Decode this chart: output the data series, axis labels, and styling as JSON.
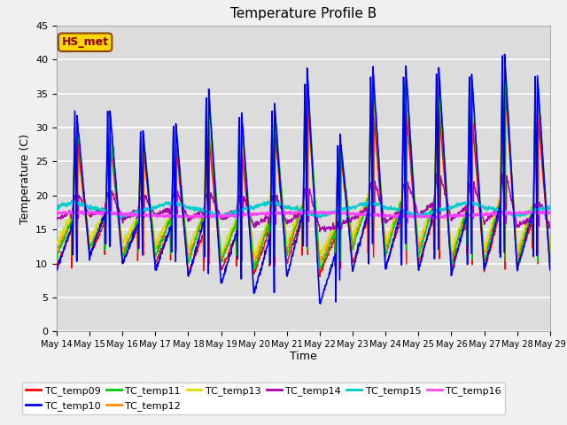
{
  "title": "Temperature Profile B",
  "xlabel": "Time",
  "ylabel": "Temperature (C)",
  "ylim": [
    0,
    45
  ],
  "annotation_text": "HS_met",
  "annotation_color": "#8B0000",
  "annotation_bg": "#FFD700",
  "annotation_edge": "#8B4513",
  "series_order": [
    "TC_temp09",
    "TC_temp10",
    "TC_temp11",
    "TC_temp12",
    "TC_temp13",
    "TC_temp14",
    "TC_temp15",
    "TC_temp16"
  ],
  "colors": {
    "TC_temp09": "#FF0000",
    "TC_temp10": "#0000EE",
    "TC_temp11": "#00CC00",
    "TC_temp12": "#FF8C00",
    "TC_temp13": "#DDDD00",
    "TC_temp14": "#AA00AA",
    "TC_temp15": "#00CCCC",
    "TC_temp16": "#FF44FF"
  },
  "lw": {
    "TC_temp09": 1.0,
    "TC_temp10": 1.2,
    "TC_temp11": 1.0,
    "TC_temp12": 1.0,
    "TC_temp13": 1.2,
    "TC_temp14": 1.0,
    "TC_temp15": 1.2,
    "TC_temp16": 1.5
  },
  "bg_color": "#DCDCDC",
  "grid_color": "#FFFFFF",
  "fig_bg": "#F0F0F0",
  "yticks": [
    0,
    5,
    10,
    15,
    20,
    25,
    30,
    35,
    40,
    45
  ],
  "xtick_labels": [
    "May 14",
    "May 15",
    "May 16",
    "May 17",
    "May 18",
    "May 19",
    "May 20",
    "May 21",
    "May 22",
    "May 23",
    "May 24",
    "May 25",
    "May 26",
    "May 27",
    "May 28",
    "May 29"
  ]
}
